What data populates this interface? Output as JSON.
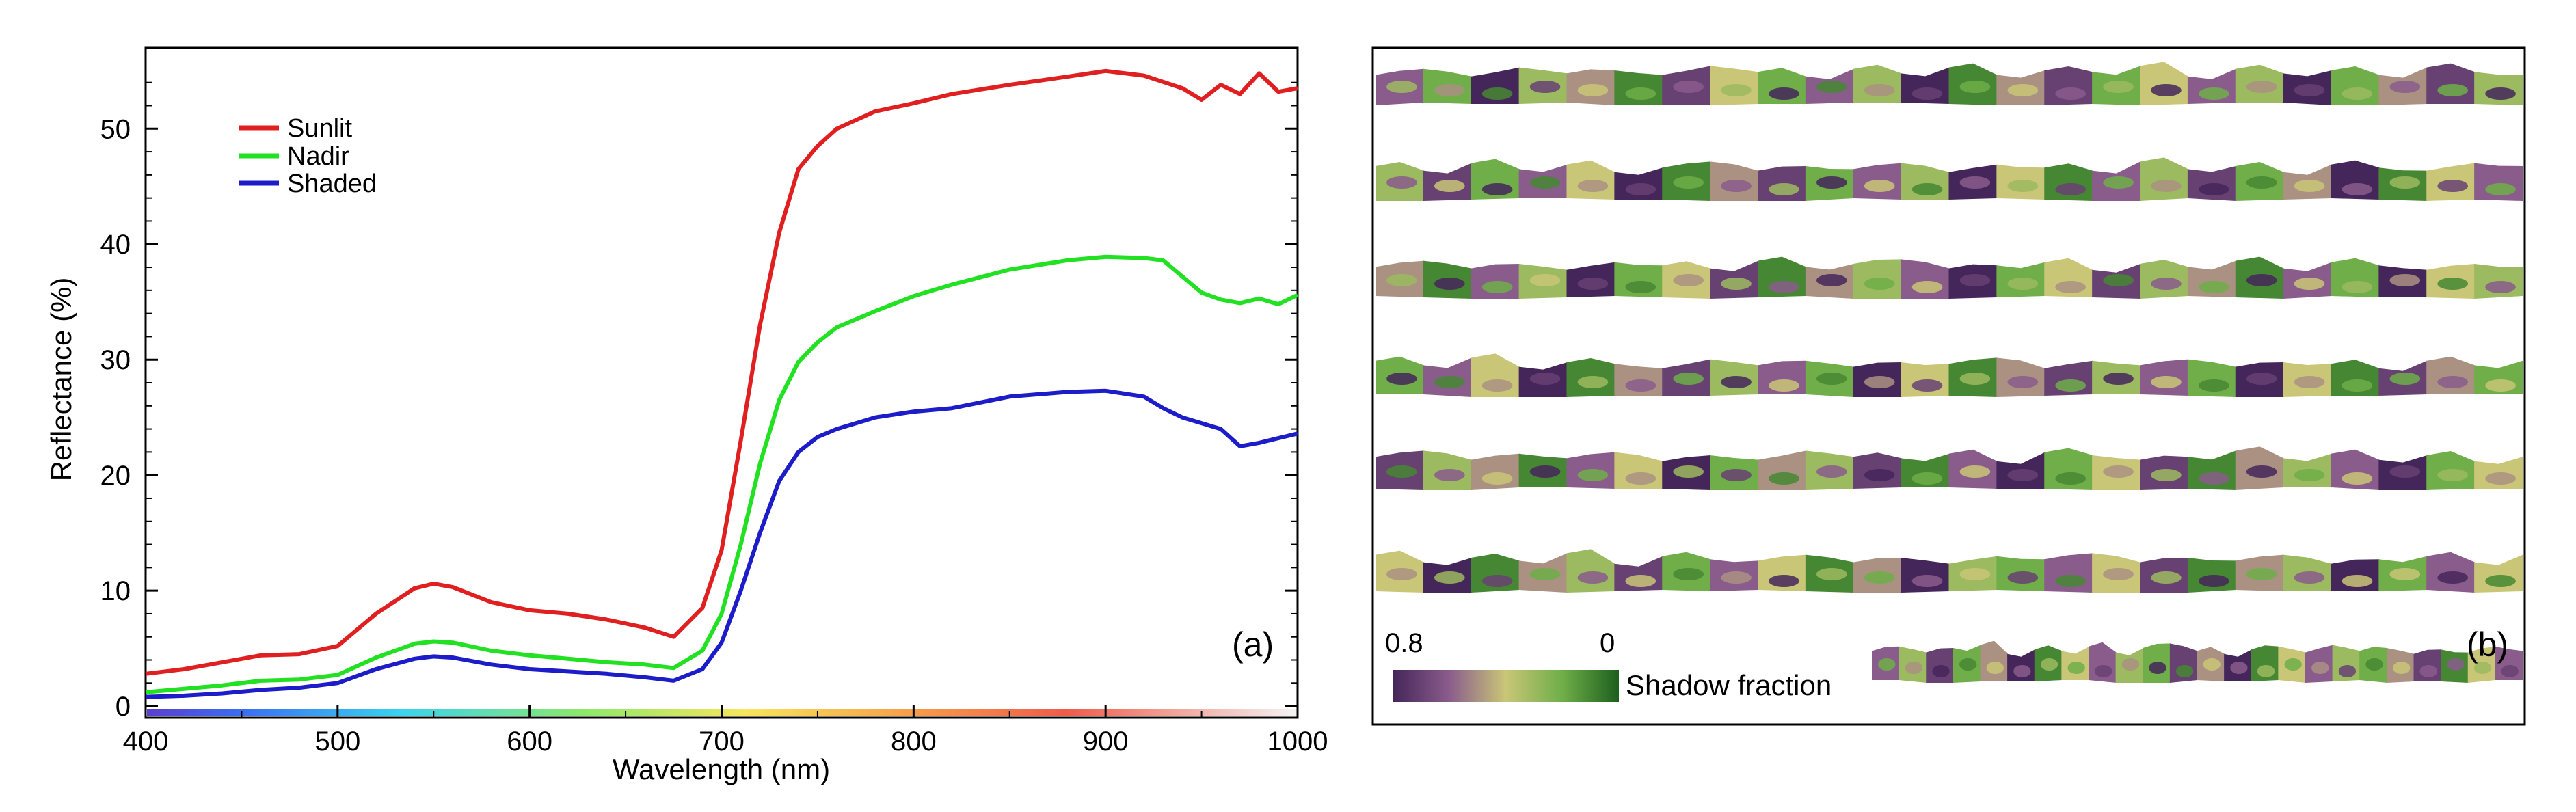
{
  "chart_data": [
    {
      "type": "line",
      "panel_label": "(a)",
      "xlabel": "Wavelength (nm)",
      "ylabel": "Reflectance (%)",
      "xlim": [
        400,
        1000
      ],
      "ylim": [
        -1,
        57
      ],
      "xticks": [
        "400",
        "500",
        "600",
        "700",
        "800",
        "900",
        "1000"
      ],
      "yticks": [
        "0",
        "10",
        "20",
        "30",
        "40",
        "50"
      ],
      "legend_position": "top-left",
      "grid": false,
      "spectrum_strip": true,
      "series": [
        {
          "name": "Sunlit",
          "color": "#e02020",
          "x": [
            400,
            420,
            440,
            460,
            480,
            500,
            520,
            540,
            550,
            560,
            580,
            600,
            620,
            640,
            660,
            675,
            690,
            700,
            710,
            720,
            730,
            740,
            750,
            760,
            780,
            800,
            820,
            850,
            880,
            900,
            920,
            940,
            950,
            960,
            970,
            980,
            990,
            1000
          ],
          "y": [
            2.8,
            3.2,
            3.8,
            4.4,
            4.5,
            5.2,
            8.0,
            10.2,
            10.6,
            10.3,
            9.0,
            8.3,
            8.0,
            7.5,
            6.8,
            6.0,
            8.5,
            13.5,
            23,
            33,
            41,
            46.5,
            48.5,
            50,
            51.5,
            52.2,
            53,
            53.8,
            54.5,
            55,
            54.6,
            53.5,
            52.5,
            53.8,
            53,
            54.8,
            53.2,
            53.5
          ]
        },
        {
          "name": "Nadir",
          "color": "#22e022",
          "x": [
            400,
            420,
            440,
            460,
            480,
            500,
            520,
            540,
            550,
            560,
            580,
            600,
            620,
            640,
            660,
            675,
            690,
            700,
            710,
            720,
            730,
            740,
            750,
            760,
            780,
            800,
            820,
            850,
            880,
            900,
            920,
            930,
            940,
            950,
            960,
            970,
            980,
            990,
            1000
          ],
          "y": [
            1.2,
            1.5,
            1.8,
            2.2,
            2.3,
            2.7,
            4.2,
            5.4,
            5.6,
            5.5,
            4.8,
            4.4,
            4.1,
            3.8,
            3.6,
            3.3,
            4.8,
            8,
            14,
            21,
            26.5,
            29.8,
            31.5,
            32.8,
            34.2,
            35.5,
            36.5,
            37.8,
            38.6,
            38.9,
            38.8,
            38.6,
            37.2,
            35.8,
            35.2,
            34.9,
            35.3,
            34.8,
            35.6
          ]
        },
        {
          "name": "Shaded",
          "color": "#1c1cc8",
          "x": [
            400,
            420,
            440,
            460,
            480,
            500,
            520,
            540,
            550,
            560,
            580,
            600,
            620,
            640,
            660,
            675,
            690,
            700,
            710,
            720,
            730,
            740,
            750,
            760,
            780,
            800,
            820,
            850,
            880,
            900,
            920,
            930,
            940,
            950,
            960,
            970,
            980,
            990,
            1000
          ],
          "y": [
            0.8,
            0.9,
            1.1,
            1.4,
            1.6,
            2.0,
            3.2,
            4.1,
            4.3,
            4.2,
            3.6,
            3.2,
            3.0,
            2.8,
            2.5,
            2.2,
            3.2,
            5.5,
            10,
            15,
            19.5,
            22,
            23.3,
            24,
            25,
            25.5,
            25.8,
            26.8,
            27.2,
            27.3,
            26.8,
            25.8,
            25,
            24.5,
            24,
            22.5,
            22.8,
            23.2,
            23.6
          ]
        }
      ]
    },
    {
      "type": "heatmap",
      "panel_label": "(b)",
      "colorbar_label": "Shadow fraction",
      "colorbar_range": [
        "0.8",
        "0"
      ],
      "colorbar_colors": [
        "#45265a",
        "#8a5c8c",
        "#c9c677",
        "#6fae48",
        "#1d5f1e"
      ],
      "rows": [
        {
          "edge": [
            2,
            6,
            1,
            7,
            3,
            5,
            2,
            8,
            4,
            1,
            6,
            3,
            7,
            2,
            5,
            4,
            8,
            1,
            6,
            3,
            5,
            2,
            7,
            4
          ],
          "shade": [
            0.6,
            0.2,
            0.8,
            0.3,
            0.5,
            0.1,
            0.7,
            0.4,
            0.2,
            0.6,
            0.3,
            0.8,
            0.1,
            0.5,
            0.7,
            0.2,
            0.4,
            0.6,
            0.3,
            0.8,
            0.2,
            0.5,
            0.7,
            0.3
          ]
        },
        {
          "edge": [
            5,
            2,
            7,
            3,
            6,
            1,
            4,
            8,
            2,
            5,
            3,
            7,
            1,
            6,
            4,
            2,
            8,
            3,
            5,
            1,
            6,
            4,
            2,
            7
          ],
          "shade": [
            0.3,
            0.7,
            0.2,
            0.6,
            0.4,
            0.8,
            0.1,
            0.5,
            0.7,
            0.2,
            0.6,
            0.3,
            0.8,
            0.4,
            0.1,
            0.6,
            0.3,
            0.7,
            0.2,
            0.5,
            0.8,
            0.1,
            0.4,
            0.6
          ]
        },
        {
          "edge": [
            3,
            7,
            2,
            5,
            1,
            6,
            4,
            2,
            7,
            3,
            5,
            8,
            2,
            4,
            6,
            1,
            5,
            3,
            7,
            2,
            6,
            4,
            1,
            5
          ],
          "shade": [
            0.5,
            0.1,
            0.6,
            0.3,
            0.8,
            0.2,
            0.4,
            0.7,
            0.1,
            0.5,
            0.3,
            0.6,
            0.8,
            0.2,
            0.4,
            0.7,
            0.3,
            0.5,
            0.1,
            0.6,
            0.2,
            0.8,
            0.4,
            0.3
          ]
        },
        {
          "edge": [
            6,
            3,
            8,
            2,
            5,
            4,
            1,
            7,
            3,
            6,
            2,
            5,
            4,
            8,
            1,
            6,
            3,
            7,
            2,
            5,
            4,
            1,
            6,
            3
          ],
          "shade": [
            0.2,
            0.6,
            0.4,
            0.8,
            0.1,
            0.5,
            0.7,
            0.3,
            0.6,
            0.2,
            0.8,
            0.4,
            0.1,
            0.5,
            0.7,
            0.3,
            0.6,
            0.2,
            0.8,
            0.4,
            0.1,
            0.7,
            0.5,
            0.2
          ]
        },
        {
          "edge": [
            4,
            8,
            2,
            6,
            3,
            7,
            1,
            5,
            2,
            8,
            4,
            3,
            6,
            1,
            7,
            5,
            2,
            4,
            8,
            3,
            6,
            2,
            5,
            1
          ],
          "shade": [
            0.7,
            0.3,
            0.5,
            0.1,
            0.6,
            0.4,
            0.8,
            0.2,
            0.5,
            0.3,
            0.7,
            0.1,
            0.6,
            0.8,
            0.2,
            0.4,
            0.7,
            0.1,
            0.5,
            0.3,
            0.6,
            0.8,
            0.2,
            0.4
          ]
        },
        {
          "edge": [
            7,
            2,
            5,
            3,
            8,
            1,
            6,
            4,
            3,
            7,
            2,
            5,
            1,
            6,
            4,
            8,
            2,
            5,
            3,
            7,
            1,
            4,
            6,
            2
          ],
          "shade": [
            0.4,
            0.8,
            0.1,
            0.5,
            0.3,
            0.7,
            0.2,
            0.6,
            0.4,
            0.1,
            0.5,
            0.8,
            0.3,
            0.2,
            0.6,
            0.4,
            0.7,
            0.1,
            0.5,
            0.3,
            0.8,
            0.2,
            0.6,
            0.4
          ]
        },
        {
          "edge": [
            3,
            6,
            2,
            5,
            7,
            1,
            4,
            3,
            6,
            2,
            5,
            8,
            3,
            1,
            4,
            6,
            2,
            7,
            3,
            5,
            1,
            4,
            2,
            6
          ],
          "shade": [
            0.6,
            0.3,
            0.7,
            0.2,
            0.5,
            0.8,
            0.1,
            0.4,
            0.6,
            0.3,
            0.2,
            0.7,
            0.5,
            0.8,
            0.1,
            0.4,
            0.6,
            0.3,
            0.2,
            0.5,
            0.7,
            0.1,
            0.4,
            0.6
          ]
        }
      ]
    }
  ]
}
